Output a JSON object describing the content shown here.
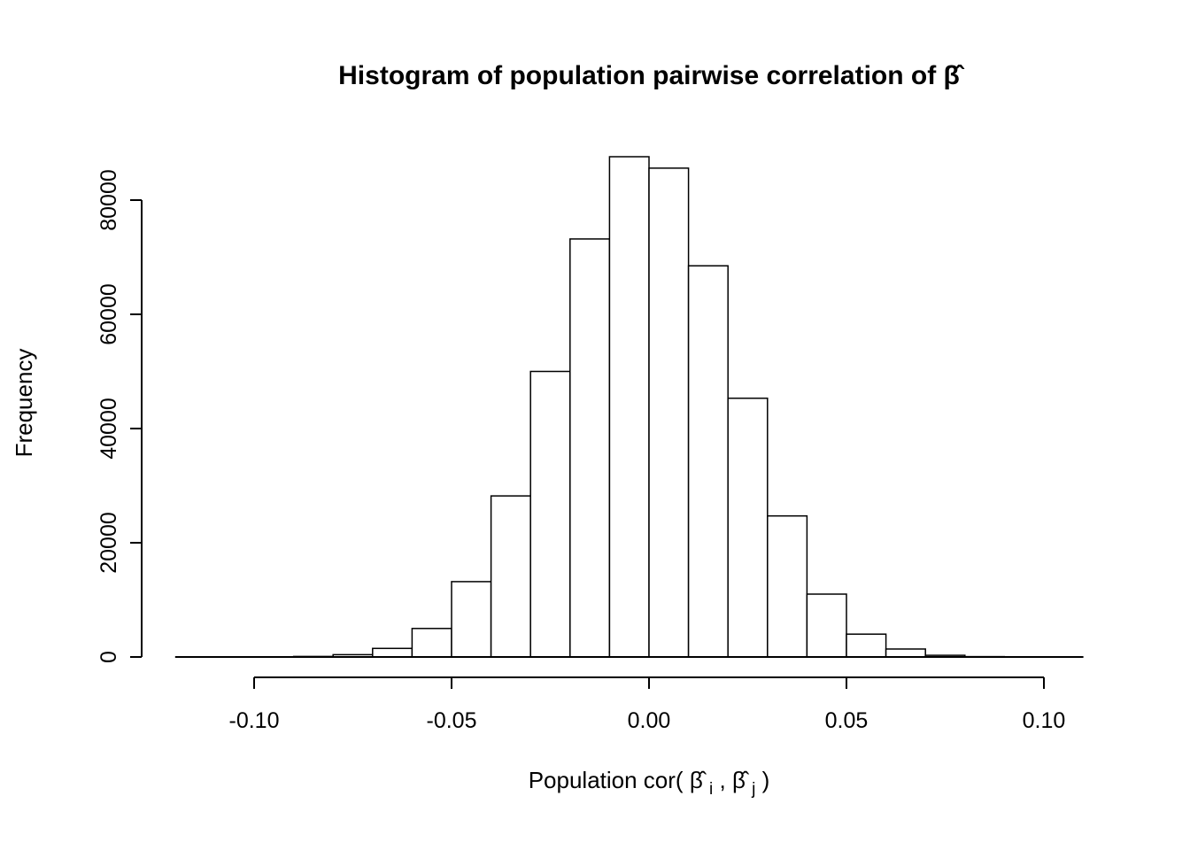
{
  "chart_data": {
    "type": "histogram",
    "title": "Histogram of population pairwise correlation of β̂",
    "xlabel": "Population cor(β̂i, β̂j)",
    "xlabel_parts": {
      "prefix": "Population cor(",
      "beta": "β̂",
      "sub_i": "i",
      "sep": ", ",
      "sub_j": "j",
      "suffix": ")"
    },
    "ylabel": "Frequency",
    "bin_start": -0.09,
    "bin_width": 0.01,
    "counts": [
      100,
      400,
      1500,
      5000,
      13200,
      28200,
      50000,
      73200,
      87600,
      85600,
      68500,
      45300,
      24700,
      11000,
      4000,
      1400,
      300,
      60
    ],
    "x_ticks": [
      {
        "value": -0.1,
        "label": "-0.10"
      },
      {
        "value": -0.05,
        "label": "-0.05"
      },
      {
        "value": 0.0,
        "label": "0.00"
      },
      {
        "value": 0.05,
        "label": "0.05"
      },
      {
        "value": 0.1,
        "label": "0.10"
      }
    ],
    "y_ticks": [
      {
        "value": 0,
        "label": "0"
      },
      {
        "value": 20000,
        "label": "20000"
      },
      {
        "value": 40000,
        "label": "40000"
      },
      {
        "value": 60000,
        "label": "60000"
      },
      {
        "value": 80000,
        "label": "80000"
      }
    ],
    "xlim": [
      -0.12,
      0.11
    ],
    "ylim": [
      0,
      87600
    ],
    "baseline_extent": [
      -0.12,
      0.11
    ],
    "grid": false,
    "legend": false,
    "colors": {
      "bar_fill": "#ffffff",
      "bar_stroke": "#000000",
      "axis": "#000000",
      "text": "#000000"
    }
  }
}
